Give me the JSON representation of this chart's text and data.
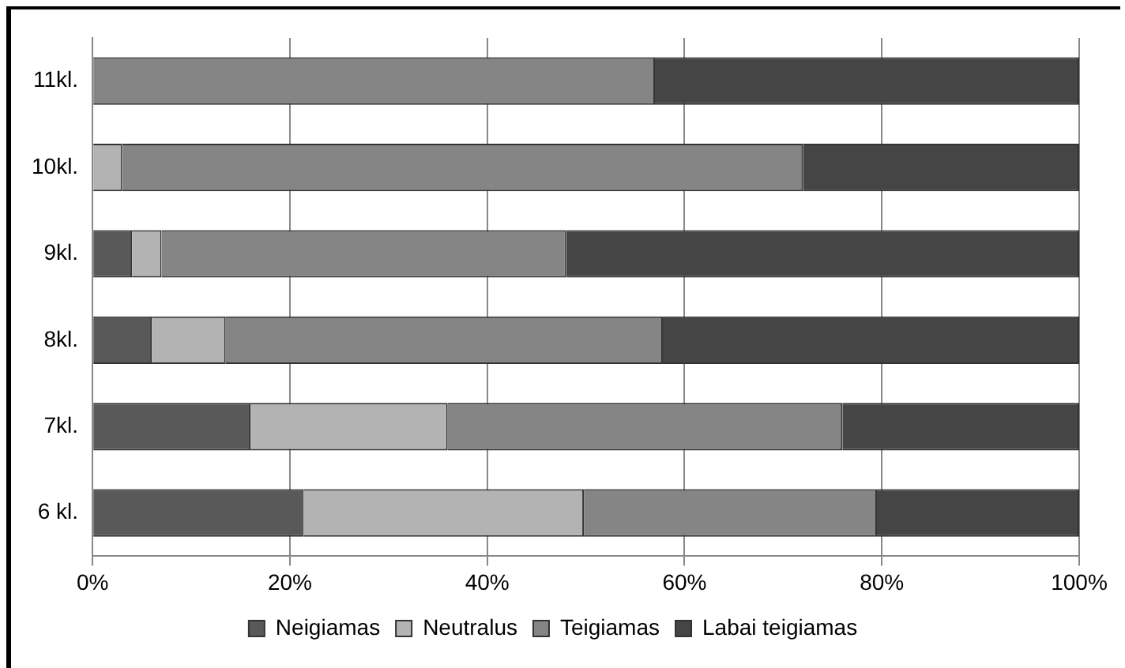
{
  "chart_data": {
    "type": "bar",
    "orientation": "horizontal",
    "stacked": true,
    "categories": [
      "11kl.",
      "10kl.",
      "9kl.",
      "8kl.",
      "7kl.",
      "6 kl."
    ],
    "series": [
      {
        "name": "Neigiamas",
        "color": "#595959",
        "values": [
          0,
          0,
          4,
          6,
          16,
          21.4
        ]
      },
      {
        "name": "Neutralus",
        "color": "#b3b3b3",
        "values": [
          0,
          3,
          3,
          7.5,
          20,
          28.4
        ]
      },
      {
        "name": "Teigiamas",
        "color": "#858585",
        "values": [
          57,
          69,
          41,
          44.3,
          40,
          29.7
        ]
      },
      {
        "name": "Labai teigiamas",
        "color": "#454545",
        "values": [
          43,
          28,
          52,
          42.2,
          24,
          20.5
        ]
      }
    ],
    "xlim": [
      0,
      100
    ],
    "xticks": [
      {
        "value": 0,
        "label": "0%"
      },
      {
        "value": 20,
        "label": "20%"
      },
      {
        "value": 40,
        "label": "40%"
      },
      {
        "value": 60,
        "label": "60%"
      },
      {
        "value": 80,
        "label": "80%"
      },
      {
        "value": 100,
        "label": "100%"
      }
    ],
    "grid": "x",
    "legend": "bottom"
  }
}
